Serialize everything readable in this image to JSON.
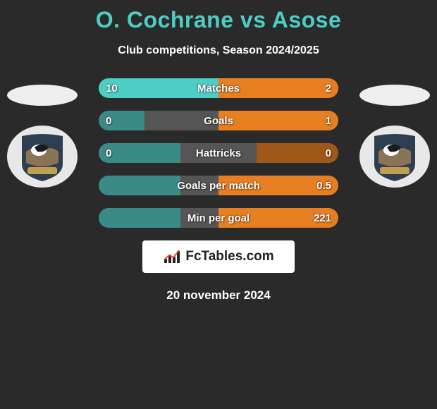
{
  "title": "O. Cochrane vs Asose",
  "subtitle": "Club competitions, Season 2024/2025",
  "date": "20 november 2024",
  "logo_text": "FcTables.com",
  "crest": {
    "outer": "#2c3e50",
    "arch": "#8b7355",
    "bird_body": "#ffffff",
    "bird_wing": "#1a1a1a",
    "banner": "#c0a050"
  },
  "colors": {
    "left_fill": "#4ecdc4",
    "left_empty": "#3a8a85",
    "right_fill": "#e67e22",
    "right_empty": "#a0581a",
    "track_bg": "#555555"
  },
  "bars": [
    {
      "label": "Matches",
      "left_val": "10",
      "right_val": "2",
      "left_pct": 50,
      "right_pct": 50,
      "left_filled": true,
      "right_filled": true
    },
    {
      "label": "Goals",
      "left_val": "0",
      "right_val": "1",
      "left_pct": 19,
      "right_pct": 50,
      "left_filled": false,
      "right_filled": true
    },
    {
      "label": "Hattricks",
      "left_val": "0",
      "right_val": "0",
      "left_pct": 34,
      "right_pct": 34,
      "left_filled": false,
      "right_filled": false
    },
    {
      "label": "Goals per match",
      "left_val": "",
      "right_val": "0.5",
      "left_pct": 34,
      "right_pct": 50,
      "left_filled": false,
      "right_filled": true
    },
    {
      "label": "Min per goal",
      "left_val": "",
      "right_val": "221",
      "left_pct": 34,
      "right_pct": 50,
      "left_filled": false,
      "right_filled": true
    }
  ]
}
